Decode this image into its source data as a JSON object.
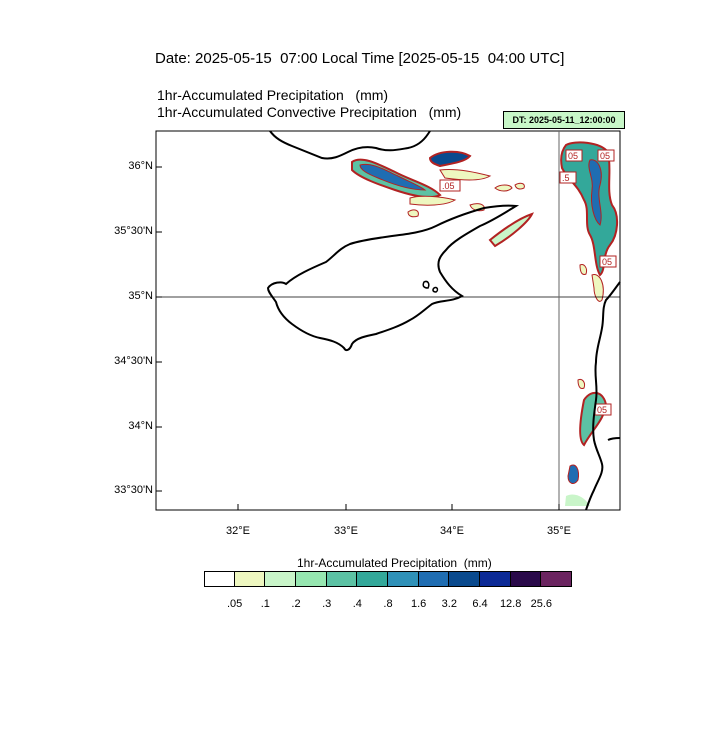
{
  "header": {
    "date_line": "Date: 2025-05-15  07:00 Local Time [2025-05-15  04:00 UTC]",
    "field1": "1hr-Accumulated Precipitation   (mm)",
    "field2": "1hr-Accumulated Convective Precipitation   (mm)",
    "dt_badge": "DT: 2025-05-11_12:00:00"
  },
  "map": {
    "lat_labels": [
      "36°N",
      "35°30'N",
      "35°N",
      "34°30'N",
      "34°N",
      "33°30'N"
    ],
    "lon_labels": [
      "32°E",
      "33°E",
      "34°E",
      "35°E"
    ],
    "contour_labels": [
      "05",
      "05",
      "05",
      ".5",
      "05",
      ".05"
    ],
    "colors": {
      "outline": "#000000",
      "contour": "#b22222",
      "grid": "#000000"
    }
  },
  "colorbar": {
    "title": "1hr-Accumulated Precipitation  (mm)",
    "ticks": [
      ".05",
      ".1",
      ".2",
      ".3",
      ".4",
      ".8",
      "1.6",
      "3.2",
      "6.4",
      "12.8",
      "25.6"
    ],
    "colors": [
      "#ffffff",
      "#eef7c0",
      "#c9f5c9",
      "#96e6b0",
      "#5cc2a4",
      "#33a89a",
      "#2f91b8",
      "#1f6db2",
      "#0a4a8e",
      "#0c2a96",
      "#2a0a4a",
      "#6b2460"
    ]
  }
}
